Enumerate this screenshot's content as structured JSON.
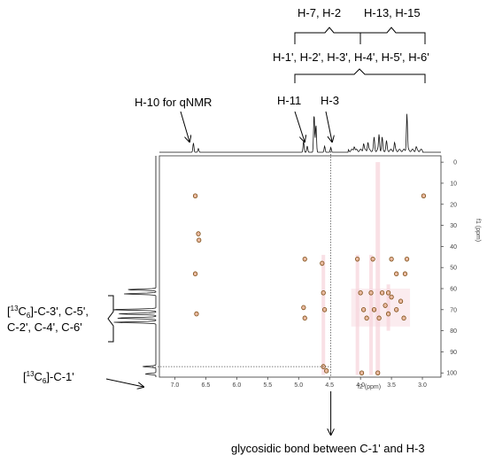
{
  "chart_data": {
    "type": "heatmap",
    "title": "",
    "xlabel": "f2 (ppm)",
    "ylabel": "f1 (ppm)",
    "xlim": [
      7.25,
      2.7
    ],
    "ylim": [
      -3,
      102
    ],
    "x_ticks": [
      "7.0",
      "6.5",
      "6.0",
      "5.5",
      "5.0",
      "4.5",
      "4.0",
      "3.5",
      "3.0"
    ],
    "x_tick_values": [
      7.0,
      6.5,
      6.0,
      5.5,
      5.0,
      4.5,
      4.0,
      3.5,
      3.0
    ],
    "y_ticks": [
      "0",
      "10",
      "20",
      "30",
      "40",
      "50",
      "60",
      "70",
      "80",
      "90",
      "100"
    ],
    "y_tick_values": [
      0,
      10,
      20,
      30,
      40,
      50,
      60,
      70,
      80,
      90,
      100
    ],
    "grid": false,
    "cross_peaks": [
      {
        "x": 6.67,
        "y": 16
      },
      {
        "x": 6.62,
        "y": 34
      },
      {
        "x": 6.61,
        "y": 37
      },
      {
        "x": 6.67,
        "y": 53
      },
      {
        "x": 6.65,
        "y": 72
      },
      {
        "x": 4.9,
        "y": 46
      },
      {
        "x": 4.92,
        "y": 69
      },
      {
        "x": 4.9,
        "y": 74
      },
      {
        "x": 4.62,
        "y": 48
      },
      {
        "x": 4.6,
        "y": 62
      },
      {
        "x": 4.58,
        "y": 70
      },
      {
        "x": 4.6,
        "y": 97
      },
      {
        "x": 4.55,
        "y": 99
      },
      {
        "x": 4.05,
        "y": 46
      },
      {
        "x": 4.0,
        "y": 62
      },
      {
        "x": 3.95,
        "y": 70
      },
      {
        "x": 3.9,
        "y": 74
      },
      {
        "x": 3.98,
        "y": 100
      },
      {
        "x": 3.8,
        "y": 46
      },
      {
        "x": 3.83,
        "y": 62
      },
      {
        "x": 3.78,
        "y": 70
      },
      {
        "x": 3.7,
        "y": 74
      },
      {
        "x": 3.65,
        "y": 62
      },
      {
        "x": 3.72,
        "y": 100
      },
      {
        "x": 3.6,
        "y": 68
      },
      {
        "x": 3.55,
        "y": 72
      },
      {
        "x": 3.55,
        "y": 62
      },
      {
        "x": 3.5,
        "y": 64
      },
      {
        "x": 3.42,
        "y": 70
      },
      {
        "x": 3.35,
        "y": 66
      },
      {
        "x": 3.42,
        "y": 53
      },
      {
        "x": 3.5,
        "y": 46
      },
      {
        "x": 3.3,
        "y": 74
      },
      {
        "x": 3.25,
        "y": 46
      },
      {
        "x": 3.28,
        "y": 53
      },
      {
        "x": 2.98,
        "y": 16
      }
    ],
    "proton_trace_peaks": [
      {
        "x": 6.7,
        "h": 0.15
      },
      {
        "x": 6.62,
        "h": 0.06
      },
      {
        "x": 4.92,
        "h": 0.18
      },
      {
        "x": 4.86,
        "h": 0.1
      },
      {
        "x": 4.75,
        "h": 0.62
      },
      {
        "x": 4.72,
        "h": 0.45
      },
      {
        "x": 4.58,
        "h": 0.1
      },
      {
        "x": 4.48,
        "h": 0.08
      },
      {
        "x": 4.1,
        "h": 0.08
      },
      {
        "x": 3.95,
        "h": 0.12
      },
      {
        "x": 3.88,
        "h": 0.14
      },
      {
        "x": 3.78,
        "h": 0.2
      },
      {
        "x": 3.7,
        "h": 0.26
      },
      {
        "x": 3.65,
        "h": 0.2
      },
      {
        "x": 3.58,
        "h": 0.14
      },
      {
        "x": 3.45,
        "h": 0.12
      },
      {
        "x": 3.25,
        "h": 0.6
      },
      {
        "x": 3.1,
        "h": 0.05
      }
    ],
    "carbon_trace_peaks": [
      {
        "y": 60.5,
        "h": 0.55
      },
      {
        "y": 62.5,
        "h": 0.6
      },
      {
        "y": 70.0,
        "h": 0.85
      },
      {
        "y": 72.0,
        "h": 0.7
      },
      {
        "y": 74.0,
        "h": 0.75
      },
      {
        "y": 76.0,
        "h": 0.8
      },
      {
        "y": 97.0,
        "h": 0.25
      },
      {
        "y": 100.5,
        "h": 0.2
      }
    ],
    "annotations": {
      "top_bracket_1": "H-7, H-2",
      "top_bracket_2": "H-13, H-15",
      "top_bracket_row2": "H-1', H-2', H-3', H-4', H-5', H-6'",
      "h10": "H-10 for qNMR",
      "h11": "H-11",
      "h3": "H-3",
      "left_c_group_l1_pre": "[",
      "left_c_group_l1_sup": "13",
      "left_c_group_l1_mid": "C",
      "left_c_group_l1_sub": "6",
      "left_c_group_l1_post": "]-C-3', C-5',",
      "left_c_group_l2": "C-2', C-4', C-6'",
      "left_c1_pre": "[",
      "left_c1_sup": "13",
      "left_c1_mid": "C",
      "left_c1_sub": "6",
      "left_c1_post": "]-C-1'",
      "bottom": "glycosidic bond between C-1' and H-3"
    }
  }
}
